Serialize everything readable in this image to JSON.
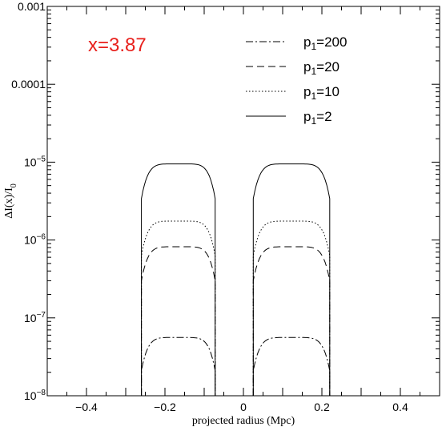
{
  "chart_data": {
    "type": "line",
    "title": "",
    "annotation": {
      "text": "x=3.87",
      "color": "#e8201c"
    },
    "xlabel": "projected radius (Mpc)",
    "ylabel": "ΔI(x)/I",
    "ylabel_subscript": "0",
    "xlim": [
      -0.5,
      0.5
    ],
    "ylim": [
      1e-08,
      0.001
    ],
    "yscale": "log",
    "x_ticks": [
      {
        "value": -0.4,
        "label": "−0.4"
      },
      {
        "value": -0.2,
        "label": "−0.2"
      },
      {
        "value": 0,
        "label": "0"
      },
      {
        "value": 0.2,
        "label": "0.2"
      },
      {
        "value": 0.4,
        "label": "0.4"
      }
    ],
    "y_ticks": [
      {
        "value": 0.001,
        "label": "0.001",
        "style": "plain"
      },
      {
        "value": 0.0001,
        "label": "0.0001",
        "style": "plain"
      },
      {
        "value": 1e-05,
        "base": "10",
        "exp": "−5",
        "style": "power"
      },
      {
        "value": 1e-06,
        "base": "10",
        "exp": "−6",
        "style": "power"
      },
      {
        "value": 1e-07,
        "base": "10",
        "exp": "−7",
        "style": "power"
      },
      {
        "value": 1e-08,
        "base": "10",
        "exp": "−8",
        "style": "power"
      }
    ],
    "grid": false,
    "legend_position": "top-right",
    "segments": [
      {
        "x_start": -0.26,
        "x_end": -0.072,
        "x_peak": -0.165
      },
      {
        "x_start": 0.025,
        "x_end": 0.22,
        "x_peak": 0.123
      }
    ],
    "series": [
      {
        "name_base": "p",
        "name_sub": "1",
        "name_value": "=200",
        "dash": "9,3,2,3",
        "peak": 5.6e-08,
        "edge": 2.1e-08
      },
      {
        "name_base": "p",
        "name_sub": "1",
        "name_value": "=20",
        "dash": "9,5",
        "peak": 8.2e-07,
        "edge": 3e-07
      },
      {
        "name_base": "p",
        "name_sub": "1",
        "name_value": "=10",
        "dash": "1.5,2.5",
        "peak": 1.75e-06,
        "edge": 6.3e-07
      },
      {
        "name_base": "p",
        "name_sub": "1",
        "name_value": "=2",
        "dash": "",
        "peak": 9.5e-06,
        "edge": 3.4e-06
      }
    ]
  }
}
